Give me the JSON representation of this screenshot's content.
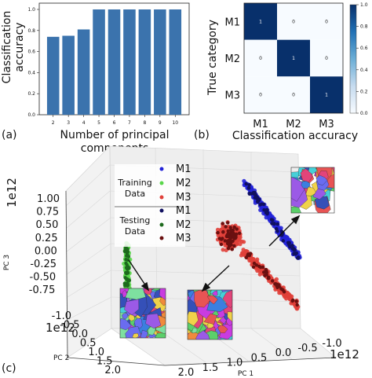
{
  "panels": {
    "a": {
      "label": "(a)"
    },
    "b": {
      "label": "(b)"
    },
    "c": {
      "label": "(c)"
    }
  },
  "colors": {
    "bar": "#3b73ad",
    "m1": "#2323d8",
    "m2": "#59d64a",
    "m3": "#e0403a",
    "m1_test": "#101060",
    "m2_test": "#1d6a1d",
    "m3_test": "#6a1010",
    "cm_high": "#08306b",
    "cm_low": "#f7fbff"
  },
  "chart_data": [
    {
      "id": "bar",
      "type": "bar",
      "categories": [
        "2",
        "3",
        "4",
        "5",
        "6",
        "7",
        "8",
        "9",
        "10"
      ],
      "values": [
        0.74,
        0.75,
        0.81,
        1.0,
        1.0,
        1.0,
        1.0,
        1.0,
        1.0
      ],
      "xlabel_lines": [
        "Number of principal",
        "components"
      ],
      "ylabel_lines": [
        "Classification",
        "accuracy"
      ],
      "ylim": [
        0,
        1.0
      ],
      "yticks": [
        "0.0",
        "0.2",
        "0.4",
        "0.6",
        "0.8",
        "1.0"
      ],
      "grid": false
    },
    {
      "id": "confusion",
      "type": "heatmap",
      "rows": [
        "M1",
        "M2",
        "M3"
      ],
      "cols": [
        "M1",
        "M2",
        "M3"
      ],
      "values": [
        [
          1,
          0,
          0
        ],
        [
          0,
          1,
          0
        ],
        [
          0,
          0,
          1
        ]
      ],
      "xlabel": "Classification accuracy",
      "ylabel": "True category",
      "colorbar_ticks": [
        "0.0",
        "0.2",
        "0.4",
        "0.6",
        "0.8",
        "1.0"
      ]
    },
    {
      "id": "pca3d",
      "type": "scatter",
      "axes": {
        "pc1": {
          "label": "PC 1",
          "ticks": [
            "2.0",
            "1.5",
            "1.0",
            "0.5",
            "0.0",
            "-0.5",
            "-1.0"
          ],
          "offset": "1e12"
        },
        "pc2": {
          "label": "PC 2",
          "ticks": [
            "-1.0",
            "-0.5",
            "0.0",
            "0.5",
            "1.0",
            "1.5",
            "2.0"
          ],
          "offset": "1e12"
        },
        "pc3": {
          "label": "PC 3",
          "ticks": [
            "1.00",
            "0.75",
            "0.50",
            "0.25",
            "0.00",
            "-0.25",
            "-0.50",
            "-0.75"
          ],
          "offset": "1e12"
        }
      },
      "legend": {
        "training_title": [
          "Training",
          "Data"
        ],
        "testing_title": [
          "Testing",
          "Data"
        ],
        "training": [
          "M1",
          "M2",
          "M3"
        ],
        "testing": [
          "M1",
          "M2",
          "M3"
        ]
      },
      "clusters": [
        {
          "name": "M1",
          "colorKey": "m1",
          "testColorKey": "m1_test",
          "pc1": [
            -0.9,
            -0.1
          ],
          "pc2": [
            -1.0,
            0.3
          ],
          "pc3": [
            -0.1,
            1.0
          ]
        },
        {
          "name": "M2",
          "colorKey": "m2",
          "testColorKey": "m2_test",
          "pc1": [
            1.4,
            1.8
          ],
          "pc2": [
            1.4,
            1.9
          ],
          "pc3": [
            -0.6,
            0.0
          ]
        },
        {
          "name": "M3",
          "colorKey": "m3",
          "testColorKey": "m3_test",
          "pc1": [
            -0.9,
            0.6
          ],
          "pc2": [
            -0.5,
            0.6
          ],
          "pc3": [
            -0.75,
            0.6
          ]
        }
      ]
    }
  ]
}
